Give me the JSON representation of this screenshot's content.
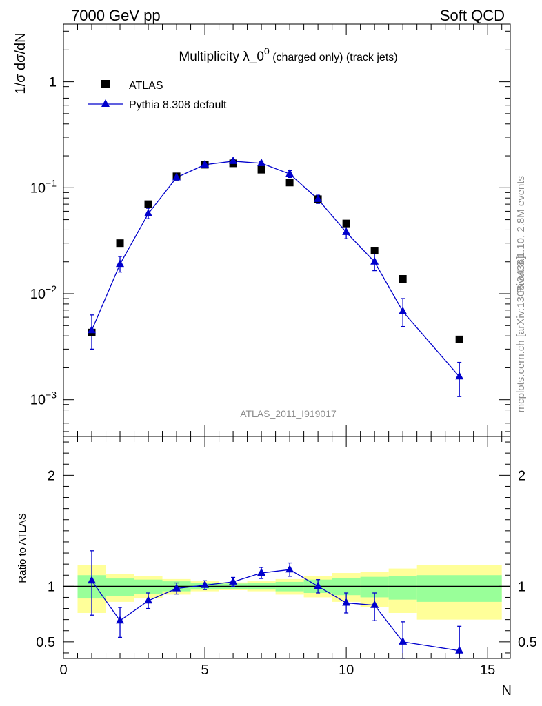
{
  "header": {
    "left": "7000 GeV pp",
    "right": "Soft QCD"
  },
  "side_labels": {
    "rivet": "Rivet 3.1.10,  2.8M events",
    "mcplots": "mcplots.cern.ch [arXiv:1306.3436]"
  },
  "chart_data": [
    {
      "type": "scatter",
      "title_main": "Multiplicity λ_0",
      "title_sup": "0",
      "title_suffix": " (charged only) (track jets)",
      "ylabel": "1/σ dσ/dN",
      "yscale": "log",
      "ylim": [
        0.00045,
        3.5
      ],
      "xlim": [
        0,
        15.8
      ],
      "y_ticks": [
        {
          "value": 1,
          "label": "1"
        },
        {
          "value": 0.1,
          "label": "10",
          "exp": "−1"
        },
        {
          "value": 0.01,
          "label": "10",
          "exp": "−2"
        },
        {
          "value": 0.001,
          "label": "10",
          "exp": "−3"
        }
      ],
      "watermark": "ATLAS_2011_I919017",
      "legend_position": "top-left",
      "series": [
        {
          "name": "ATLAS",
          "marker": "square",
          "color": "#000000",
          "x": [
            1,
            2,
            3,
            4,
            5,
            6,
            7,
            8,
            9,
            10,
            11,
            12,
            14
          ],
          "y": [
            0.0043,
            0.03,
            0.07,
            0.128,
            0.165,
            0.17,
            0.148,
            0.112,
            0.078,
            0.046,
            0.0255,
            0.0138,
            0.0037
          ]
        },
        {
          "name": "Pythia 8.308 default",
          "marker": "triangle",
          "color": "#0000cc",
          "x": [
            1,
            2,
            3,
            4,
            5,
            6,
            7,
            8,
            9,
            10,
            11,
            12,
            14
          ],
          "y": [
            0.0045,
            0.019,
            0.057,
            0.125,
            0.165,
            0.178,
            0.17,
            0.135,
            0.078,
            0.038,
            0.02,
            0.0068,
            0.00165
          ],
          "y_err_low": [
            0.0015,
            0.003,
            0.006,
            0.007,
            0.006,
            0.006,
            0.006,
            0.01,
            0.007,
            0.005,
            0.0035,
            0.0019,
            0.00058
          ],
          "y_err_high": [
            0.0018,
            0.0035,
            0.007,
            0.007,
            0.006,
            0.006,
            0.006,
            0.01,
            0.007,
            0.005,
            0.004,
            0.0022,
            0.0006
          ]
        }
      ]
    },
    {
      "type": "line",
      "ylabel": "Ratio to ATLAS",
      "xlabel": "N",
      "ylim": [
        0.35,
        2.35
      ],
      "xlim": [
        0,
        15.8
      ],
      "x_ticks": [
        0,
        5,
        10,
        15
      ],
      "y_ticks": [
        0.5,
        1,
        2
      ],
      "reference_line": 1,
      "band_edges": [
        0.5,
        1.5,
        2.5,
        3.5,
        4.5,
        5.5,
        6.5,
        7.5,
        8.5,
        9.5,
        10.5,
        11.5,
        12.5,
        15.5
      ],
      "band_inner_low": [
        0.89,
        0.91,
        0.93,
        0.955,
        0.97,
        0.975,
        0.97,
        0.955,
        0.94,
        0.92,
        0.9,
        0.88,
        0.86
      ],
      "band_inner_high": [
        1.1,
        1.07,
        1.06,
        1.045,
        1.03,
        1.025,
        1.03,
        1.04,
        1.06,
        1.075,
        1.085,
        1.095,
        1.1
      ],
      "band_outer_low": [
        0.76,
        0.86,
        0.89,
        0.925,
        0.955,
        0.965,
        0.955,
        0.925,
        0.9,
        0.86,
        0.81,
        0.76,
        0.7
      ],
      "band_outer_high": [
        1.19,
        1.11,
        1.09,
        1.065,
        1.045,
        1.035,
        1.045,
        1.065,
        1.09,
        1.12,
        1.13,
        1.16,
        1.19
      ],
      "band_inner_color": "#99ff99",
      "band_outer_color": "#ffff99",
      "series": [
        {
          "name": "Pythia 8.308 default",
          "color": "#0000cc",
          "x": [
            1,
            2,
            3,
            4,
            5,
            6,
            7,
            8,
            9,
            10,
            11,
            12,
            14
          ],
          "y": [
            1.05,
            0.69,
            0.87,
            0.98,
            1.01,
            1.04,
            1.12,
            1.15,
            1.0,
            0.85,
            0.83,
            0.5,
            0.42
          ],
          "y_err_low": [
            0.31,
            0.15,
            0.07,
            0.05,
            0.04,
            0.04,
            0.05,
            0.06,
            0.06,
            0.09,
            0.14,
            0.15,
            0.22
          ],
          "y_err_high": [
            0.27,
            0.12,
            0.07,
            0.05,
            0.04,
            0.04,
            0.05,
            0.06,
            0.06,
            0.09,
            0.11,
            0.18,
            0.22
          ]
        }
      ]
    }
  ]
}
